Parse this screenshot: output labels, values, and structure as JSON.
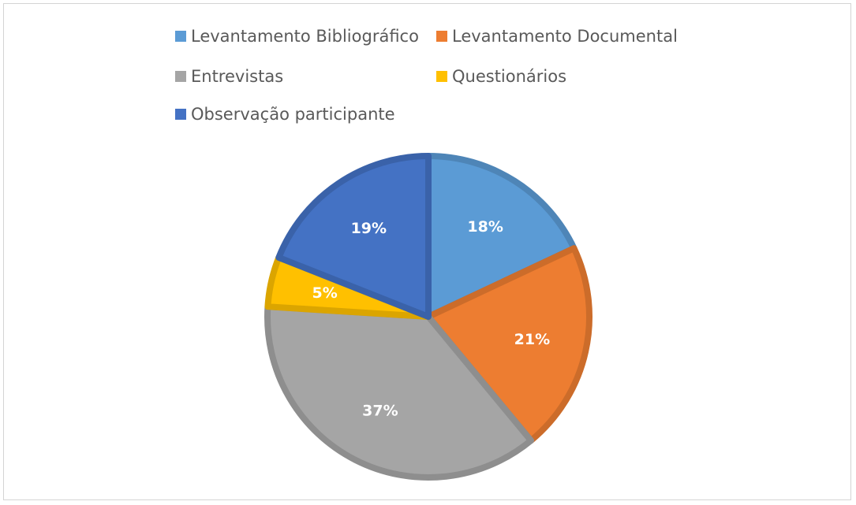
{
  "chart_data": {
    "type": "pie",
    "title": "",
    "legend_position": "top",
    "categories": [
      "Levantamento Bibliográfico",
      "Levantamento Documental",
      "Entrevistas",
      "Questionários",
      "Observação participante"
    ],
    "values": [
      18,
      21,
      37,
      5,
      19
    ],
    "data_labels": [
      "18%",
      "21%",
      "37%",
      "5%",
      "19%"
    ],
    "colors": [
      "#5b9bd5",
      "#ed7d31",
      "#a5a5a5",
      "#ffc000",
      "#4472c4"
    ],
    "series": [
      {
        "name": "",
        "values": [
          18,
          21,
          37,
          5,
          19
        ]
      }
    ]
  }
}
